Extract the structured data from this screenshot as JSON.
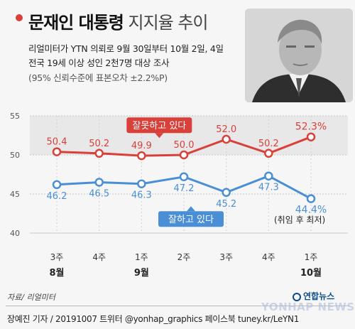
{
  "header": {
    "title_bold": "문재인 대통령",
    "title_light": "지지율 추이",
    "subtitle_lines": [
      "리얼미터가 YTN 의뢰로 9월 30일부터 10월 2일, 4일",
      "전국 19세 이상 성인 2천7명 대상 조사",
      "(95% 신뢰수준에 표본오차 ±2.2%P)"
    ]
  },
  "chart_data": {
    "type": "line",
    "categories": [
      "3주",
      "4주",
      "1주",
      "2주",
      "3주",
      "4주",
      "1주"
    ],
    "month_labels": [
      {
        "index": 0,
        "label": "8월"
      },
      {
        "index": 2,
        "label": "9월"
      },
      {
        "index": 6,
        "label": "10월"
      }
    ],
    "ylim": [
      40,
      55
    ],
    "yticks": [
      40,
      45,
      50,
      55
    ],
    "series": [
      {
        "name": "잘못하고 있다",
        "color": "#d9403a",
        "values": [
          50.4,
          50.2,
          49.9,
          50.0,
          52.0,
          50.2,
          52.3
        ],
        "value_labels": [
          "50.4",
          "50.2",
          "49.9",
          "50.0",
          "52.0",
          "50.2",
          "52.3%"
        ]
      },
      {
        "name": "잘하고 있다",
        "color": "#4a8fd6",
        "values": [
          46.2,
          46.5,
          46.3,
          47.2,
          45.2,
          47.3,
          44.4
        ],
        "value_labels": [
          "46.2",
          "46.5",
          "46.3",
          "47.2",
          "45.2",
          "47.3",
          "44.4%"
        ]
      }
    ],
    "annotation": "(취임 후 최저)"
  },
  "footer": {
    "source": "자료/ 리얼미터",
    "credit": "장예진 기자 / 20191007  트위터 @yonhap_graphics  페이스북 tuney.kr/LeYN1",
    "logo": "연합뉴스",
    "watermark": "YONHAP NEWS"
  }
}
